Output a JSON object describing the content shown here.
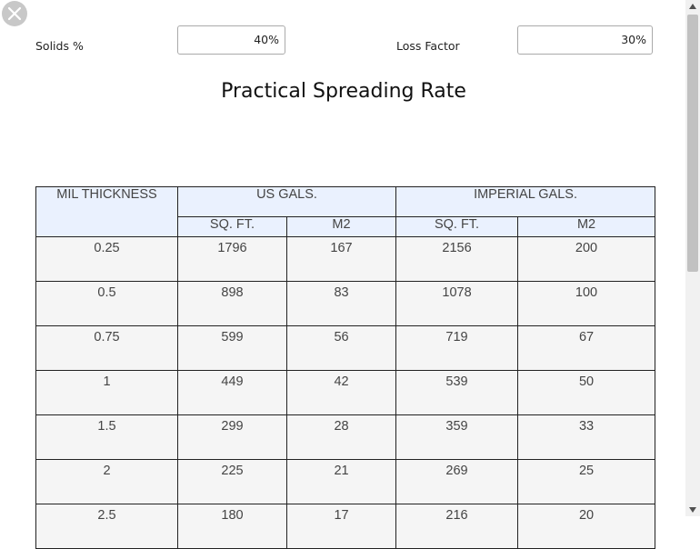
{
  "fields": {
    "solids_label": "Solids %",
    "solids_value": "40%",
    "loss_label": "Loss Factor",
    "loss_value": "30%"
  },
  "title": "Practical Spreading Rate",
  "table": {
    "header": {
      "mil": "MIL THICKNESS",
      "us": "US GALS.",
      "imperial": "IMPERIAL GALS.",
      "us_sqft": "SQ. FT.",
      "us_m2": "M2",
      "imp_sqft": "SQ. FT.",
      "imp_m2": "M2"
    },
    "rows": [
      [
        "0.25",
        "1796",
        "167",
        "2156",
        "200"
      ],
      [
        "0.5",
        "898",
        "83",
        "1078",
        "100"
      ],
      [
        "0.75",
        "599",
        "56",
        "719",
        "67"
      ],
      [
        "1",
        "449",
        "42",
        "539",
        "50"
      ],
      [
        "1.5",
        "299",
        "28",
        "359",
        "33"
      ],
      [
        "2",
        "225",
        "21",
        "269",
        "25"
      ],
      [
        "2.5",
        "180",
        "17",
        "216",
        "20"
      ]
    ]
  },
  "icons": {
    "close": "close-icon",
    "scroll_up": "chevron-up-icon",
    "scroll_down": "chevron-down-icon"
  }
}
